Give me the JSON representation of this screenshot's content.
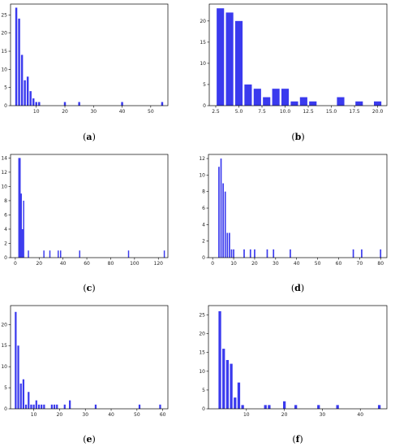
{
  "colors": {
    "bar": "#3a3aee",
    "axis": "#000000"
  },
  "chart_data": [
    {
      "type": "bar",
      "caption_letter": "a",
      "xlim": [
        1,
        56
      ],
      "ylim": [
        0,
        28
      ],
      "xticks": [
        10,
        20,
        30,
        40,
        50
      ],
      "yticks": [
        0,
        5,
        10,
        15,
        20,
        25
      ],
      "bar_width": 0.7,
      "x": [
        3,
        4,
        5,
        6,
        7,
        8,
        9,
        10,
        11,
        20,
        25,
        40,
        54
      ],
      "values": [
        27,
        24,
        14,
        7,
        8,
        4,
        2,
        1,
        1,
        1,
        1,
        1,
        1
      ]
    },
    {
      "type": "bar",
      "caption_letter": "b",
      "xlim": [
        1.8,
        21.0
      ],
      "ylim": [
        0,
        24
      ],
      "xticks": [
        2.5,
        5.0,
        7.5,
        10.0,
        12.5,
        15.0,
        17.5,
        20.0
      ],
      "yticks": [
        0,
        5,
        10,
        15,
        20
      ],
      "bar_width": 0.8,
      "x": [
        3,
        4,
        5,
        6,
        7,
        8,
        9,
        10,
        11,
        12,
        13,
        16,
        18,
        20
      ],
      "values": [
        23,
        22,
        20,
        5,
        4,
        2,
        4,
        4,
        1,
        2,
        1,
        2,
        1,
        1
      ]
    },
    {
      "type": "bar",
      "caption_letter": "c",
      "xlim": [
        -4,
        128
      ],
      "ylim": [
        0,
        14.5
      ],
      "xticks": [
        0,
        20,
        40,
        60,
        80,
        100,
        120
      ],
      "yticks": [
        0,
        2,
        4,
        6,
        8,
        10,
        12,
        14
      ],
      "bar_width": 1.0,
      "x": [
        3,
        4,
        5,
        6,
        7,
        11,
        24,
        29,
        36,
        38,
        54,
        95,
        125
      ],
      "values": [
        14,
        14,
        9,
        4,
        8,
        1,
        1,
        1,
        1,
        1,
        1,
        1,
        1
      ]
    },
    {
      "type": "bar",
      "caption_letter": "d",
      "xlim": [
        -2,
        83
      ],
      "ylim": [
        0,
        12.5
      ],
      "xticks": [
        0,
        10,
        20,
        30,
        40,
        50,
        60,
        70,
        80
      ],
      "yticks": [
        0,
        2,
        4,
        6,
        8,
        10,
        12
      ],
      "bar_width": 0.65,
      "x": [
        3,
        4,
        5,
        6,
        7,
        8,
        9,
        10,
        15,
        18,
        20,
        26,
        29,
        37,
        67,
        71,
        80
      ],
      "values": [
        11,
        12,
        9,
        8,
        3,
        3,
        1,
        1,
        1,
        1,
        1,
        1,
        1,
        1,
        1,
        1,
        1
      ]
    },
    {
      "type": "bar",
      "caption_letter": "e",
      "xlim": [
        1,
        62
      ],
      "ylim": [
        0,
        24.5
      ],
      "xticks": [
        10,
        20,
        30,
        40,
        50,
        60
      ],
      "yticks": [
        0,
        5,
        10,
        15,
        20
      ],
      "bar_width": 0.7,
      "x": [
        3,
        4,
        5,
        6,
        7,
        8,
        9,
        10,
        11,
        12,
        13,
        14,
        17,
        18,
        19,
        22,
        24,
        34,
        51,
        59
      ],
      "values": [
        23,
        15,
        6,
        7,
        1,
        4,
        1,
        1,
        2,
        1,
        1,
        1,
        1,
        1,
        1,
        1,
        2,
        1,
        1,
        1
      ]
    },
    {
      "type": "bar",
      "caption_letter": "f",
      "xlim": [
        0,
        47
      ],
      "ylim": [
        0,
        27.5
      ],
      "xticks": [
        10,
        20,
        30,
        40
      ],
      "yticks": [
        0,
        5,
        10,
        15,
        20,
        25
      ],
      "bar_width": 0.7,
      "x": [
        3,
        4,
        5,
        6,
        7,
        8,
        9,
        15,
        16,
        20,
        23,
        29,
        34,
        45
      ],
      "values": [
        26,
        16,
        13,
        12,
        3,
        7,
        1,
        1,
        1,
        2,
        1,
        1,
        1,
        1
      ]
    }
  ]
}
